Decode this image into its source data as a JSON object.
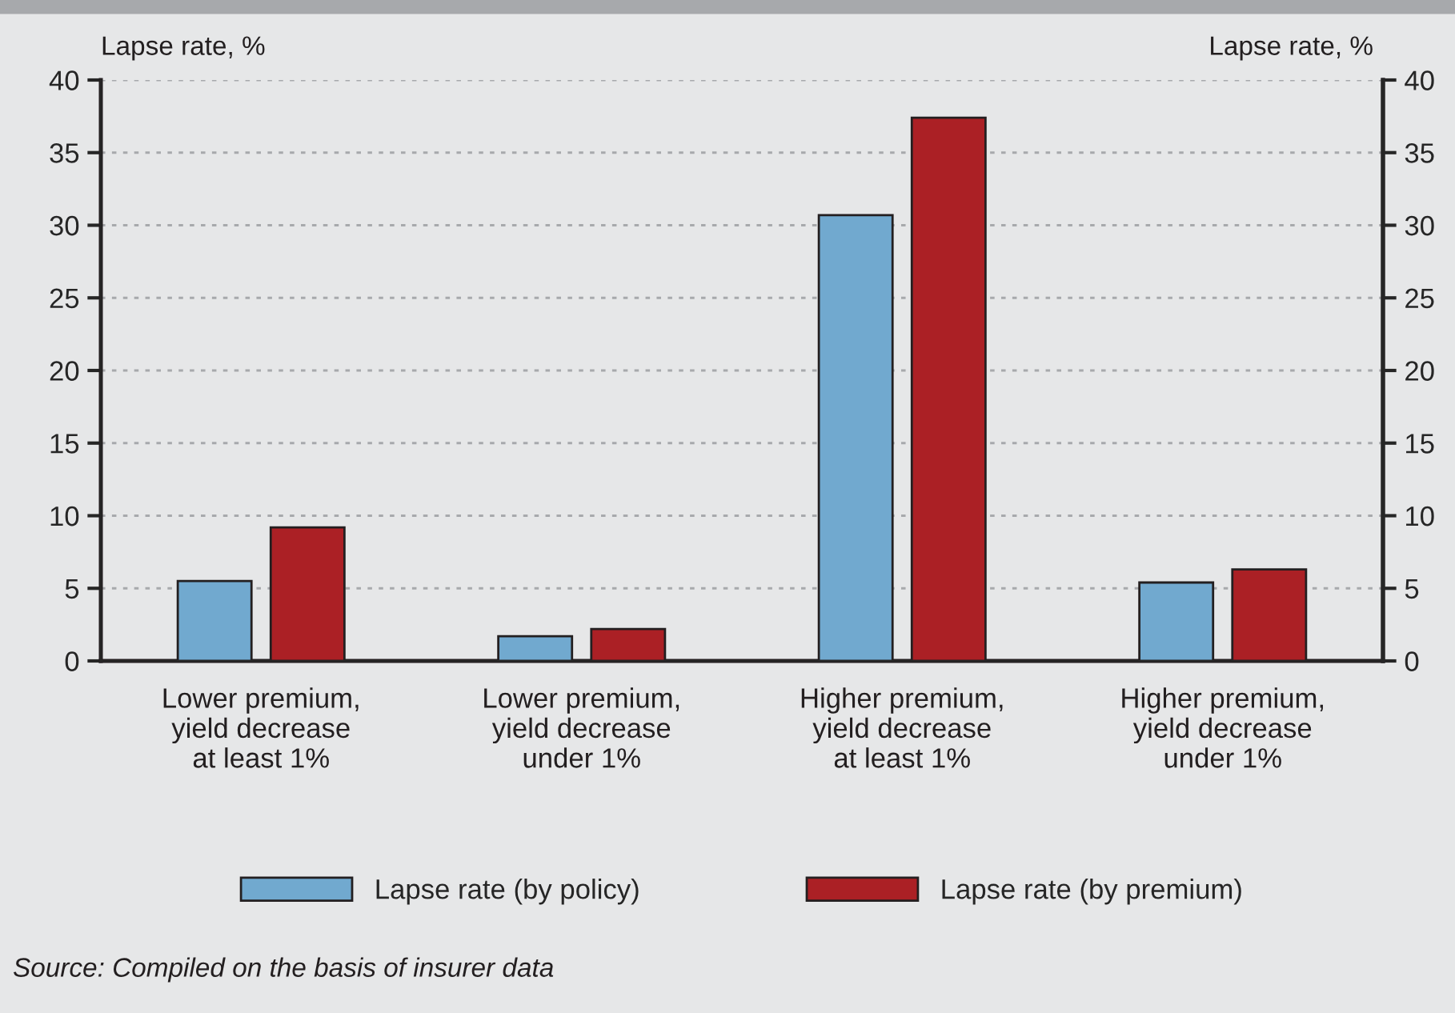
{
  "chart_data": {
    "type": "bar",
    "categories": [
      "Lower premium,\nyield decrease\nat least 1%",
      "Lower premium,\nyield decrease\nunder 1%",
      "Higher premium,\nyield decrease\nat least 1%",
      "Higher premium,\nyield decrease\nunder 1%"
    ],
    "series": [
      {
        "name": "Lapse rate (by policy)",
        "color": "#71a9cf",
        "values": [
          5.5,
          1.7,
          30.7,
          5.4
        ]
      },
      {
        "name": "Lapse rate (by premium)",
        "color": "#ab2025",
        "values": [
          9.2,
          2.2,
          37.4,
          6.3
        ]
      }
    ],
    "ylabel": "Lapse rate, %",
    "y2label": "Lapse rate, %",
    "ylim": [
      0,
      40
    ],
    "yticks": [
      0,
      5,
      10,
      15,
      20,
      25,
      30,
      35,
      40
    ],
    "y2lim": [
      0,
      40
    ],
    "y2ticks": [
      0,
      5,
      10,
      15,
      20,
      25,
      30,
      35,
      40
    ],
    "grid": "y",
    "legend": "bottom",
    "annotations": [
      "Source: Compiled on the basis of insurer data"
    ]
  }
}
